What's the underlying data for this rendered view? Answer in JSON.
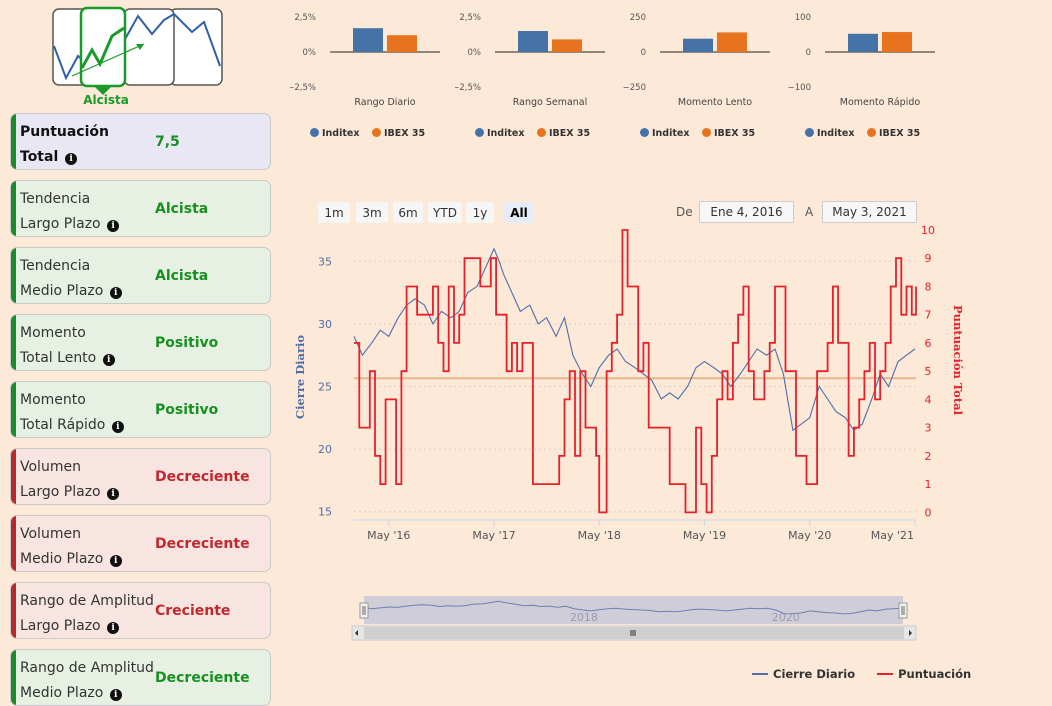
{
  "trend_logo": {
    "label": "Alcista",
    "accent": "#1a9a2a"
  },
  "cards": [
    {
      "line1": "Puntuación",
      "line2": "Total",
      "value": "7,5",
      "kind": "score"
    },
    {
      "line1": "Tendencia",
      "line2": "Largo Plazo",
      "value": "Alcista",
      "kind": "green"
    },
    {
      "line1": "Tendencia",
      "line2": "Medio Plazo",
      "value": "Alcista",
      "kind": "green"
    },
    {
      "line1": "Momento",
      "line2": "Total Lento",
      "value": "Positivo",
      "kind": "green"
    },
    {
      "line1": "Momento",
      "line2": "Total Rápido",
      "value": "Positivo",
      "kind": "green"
    },
    {
      "line1": "Volumen",
      "line2": "Largo Plazo",
      "value": "Decreciente",
      "kind": "red"
    },
    {
      "line1": "Volumen",
      "line2": "Medio Plazo",
      "value": "Decreciente",
      "kind": "red"
    },
    {
      "line1": "Rango de Amplitud",
      "line2": "Largo Plazo",
      "value": "Creciente",
      "kind": "red"
    },
    {
      "line1": "Rango de Amplitud",
      "line2": "Medio Plazo",
      "value": "Decreciente",
      "kind": "green"
    }
  ],
  "range_selector": {
    "buttons": [
      "1m",
      "3m",
      "6m",
      "YTD",
      "1y",
      "All"
    ],
    "active": "All",
    "from_label": "De",
    "from_value": "Ene 4, 2016",
    "to_label": "A",
    "to_value": "May 3, 2021"
  },
  "colors": {
    "inditex": "#4572a7",
    "ibex": "#e8731e",
    "close": "#4f6ea8",
    "score": "#e8202a",
    "ref_line": "#e8b68e"
  },
  "chart_data": [
    {
      "type": "bar",
      "title": "Rango Diario",
      "categories": [
        "Inditex",
        "IBEX 35"
      ],
      "values": [
        1.7,
        1.2
      ],
      "yticks": [
        "2,5%",
        "0%",
        "−2,5%"
      ],
      "ylim": [
        -2.5,
        2.5
      ]
    },
    {
      "type": "bar",
      "title": "Rango Semanal",
      "categories": [
        "Inditex",
        "IBEX 35"
      ],
      "values": [
        1.5,
        0.9
      ],
      "yticks": [
        "2,5%",
        "0%",
        "−2,5%"
      ],
      "ylim": [
        -2.5,
        2.5
      ]
    },
    {
      "type": "bar",
      "title": "Momento Lento",
      "categories": [
        "Inditex",
        "IBEX 35"
      ],
      "values": [
        95,
        140
      ],
      "yticks": [
        "250",
        "0",
        "−250"
      ],
      "ylim": [
        -250,
        250
      ]
    },
    {
      "type": "bar",
      "title": "Momento Rápido",
      "categories": [
        "Inditex",
        "IBEX 35"
      ],
      "values": [
        52,
        57
      ],
      "yticks": [
        "100",
        "0",
        "−100"
      ],
      "ylim": [
        -100,
        100
      ]
    },
    {
      "type": "line",
      "xlabel": "",
      "ylabel_left": "Cierre Diario",
      "ylabel_right": "Puntuación Total",
      "x_ticks": [
        "May '16",
        "May '17",
        "May '18",
        "May '19",
        "May '20",
        "May '21"
      ],
      "x_tick_values": [
        2016.33,
        2017.33,
        2018.33,
        2019.33,
        2020.33,
        2021.33
      ],
      "xlim": [
        2016.0,
        2021.34
      ],
      "left_ticks": [
        15,
        20,
        25,
        30,
        35
      ],
      "left_ylim": [
        14.5,
        37.5
      ],
      "right_ticks": [
        0,
        1,
        2,
        3,
        4,
        5,
        6,
        7,
        8,
        9,
        10
      ],
      "right_ylim": [
        -0.2,
        10
      ],
      "reference_value_right": 4.75,
      "series": [
        {
          "name": "Cierre Diario",
          "axis": "left",
          "x": [
            2016.0,
            2016.08,
            2016.17,
            2016.25,
            2016.33,
            2016.42,
            2016.5,
            2016.58,
            2016.67,
            2016.75,
            2016.83,
            2016.92,
            2017.0,
            2017.08,
            2017.17,
            2017.25,
            2017.33,
            2017.38,
            2017.42,
            2017.5,
            2017.58,
            2017.67,
            2017.75,
            2017.83,
            2017.92,
            2018.0,
            2018.08,
            2018.17,
            2018.25,
            2018.33,
            2018.42,
            2018.5,
            2018.58,
            2018.67,
            2018.75,
            2018.83,
            2018.92,
            2019.0,
            2019.08,
            2019.17,
            2019.25,
            2019.33,
            2019.42,
            2019.5,
            2019.58,
            2019.67,
            2019.75,
            2019.83,
            2019.92,
            2020.0,
            2020.08,
            2020.17,
            2020.25,
            2020.33,
            2020.42,
            2020.5,
            2020.58,
            2020.67,
            2020.75,
            2020.83,
            2020.92,
            2021.0,
            2021.08,
            2021.17,
            2021.25,
            2021.33
          ],
          "y": [
            29.0,
            27.5,
            28.5,
            29.5,
            29.0,
            30.5,
            31.5,
            32.0,
            31.5,
            30.0,
            31.0,
            30.5,
            31.0,
            32.5,
            33.0,
            34.5,
            36.0,
            35.0,
            34.0,
            32.5,
            31.0,
            31.5,
            30.0,
            30.5,
            29.0,
            30.5,
            27.5,
            26.0,
            25.0,
            26.5,
            27.5,
            28.0,
            27.0,
            26.5,
            26.0,
            25.5,
            24.0,
            24.5,
            24.0,
            25.0,
            26.5,
            27.0,
            26.5,
            26.0,
            25.0,
            26.0,
            27.0,
            28.0,
            27.5,
            28.0,
            26.0,
            21.5,
            22.0,
            22.5,
            25.0,
            24.0,
            23.0,
            22.5,
            21.5,
            22.0,
            24.0,
            26.0,
            25.0,
            27.0,
            27.5,
            28.0
          ]
        },
        {
          "name": "Puntuación",
          "axis": "right",
          "x": [
            2016.0,
            2016.05,
            2016.1,
            2016.15,
            2016.2,
            2016.25,
            2016.3,
            2016.4,
            2016.45,
            2016.5,
            2016.6,
            2016.7,
            2016.75,
            2016.8,
            2016.85,
            2016.9,
            2016.95,
            2017.0,
            2017.05,
            2017.15,
            2017.2,
            2017.3,
            2017.35,
            2017.45,
            2017.5,
            2017.55,
            2017.6,
            2017.7,
            2017.8,
            2017.9,
            2017.95,
            2018.0,
            2018.05,
            2018.1,
            2018.15,
            2018.2,
            2018.3,
            2018.33,
            2018.4,
            2018.45,
            2018.5,
            2018.55,
            2018.6,
            2018.7,
            2018.75,
            2018.8,
            2018.9,
            2019.0,
            2019.1,
            2019.15,
            2019.25,
            2019.3,
            2019.35,
            2019.4,
            2019.45,
            2019.5,
            2019.55,
            2019.6,
            2019.65,
            2019.7,
            2019.75,
            2019.8,
            2019.85,
            2019.9,
            2019.95,
            2020.0,
            2020.05,
            2020.1,
            2020.15,
            2020.2,
            2020.3,
            2020.4,
            2020.5,
            2020.55,
            2020.6,
            2020.7,
            2020.75,
            2020.8,
            2020.85,
            2020.9,
            2020.95,
            2021.0,
            2021.05,
            2021.1,
            2021.15,
            2021.2,
            2021.25,
            2021.3,
            2021.34
          ],
          "y": [
            6,
            3,
            3,
            5,
            2,
            1,
            4,
            1,
            5,
            8,
            7,
            7,
            8,
            6,
            5,
            8,
            6,
            7,
            9,
            9,
            8,
            9,
            7,
            5,
            6,
            5,
            6,
            1,
            1,
            1,
            2,
            4,
            5,
            2,
            5,
            3,
            2,
            0,
            5,
            6,
            7,
            10,
            8,
            5,
            6,
            3,
            3,
            1,
            1,
            0,
            3,
            1,
            0,
            2,
            4,
            5,
            4,
            6,
            7,
            8,
            5,
            4,
            4,
            5,
            6,
            8,
            8,
            5,
            5,
            2,
            1,
            5,
            6,
            8,
            6,
            2,
            3,
            4,
            5,
            6,
            4,
            5,
            6,
            8,
            9,
            7,
            8,
            7,
            8
          ]
        }
      ],
      "navigator_ticks": [
        "2018",
        "2020"
      ],
      "legend": [
        "Cierre Diario",
        "Puntuación"
      ]
    }
  ]
}
